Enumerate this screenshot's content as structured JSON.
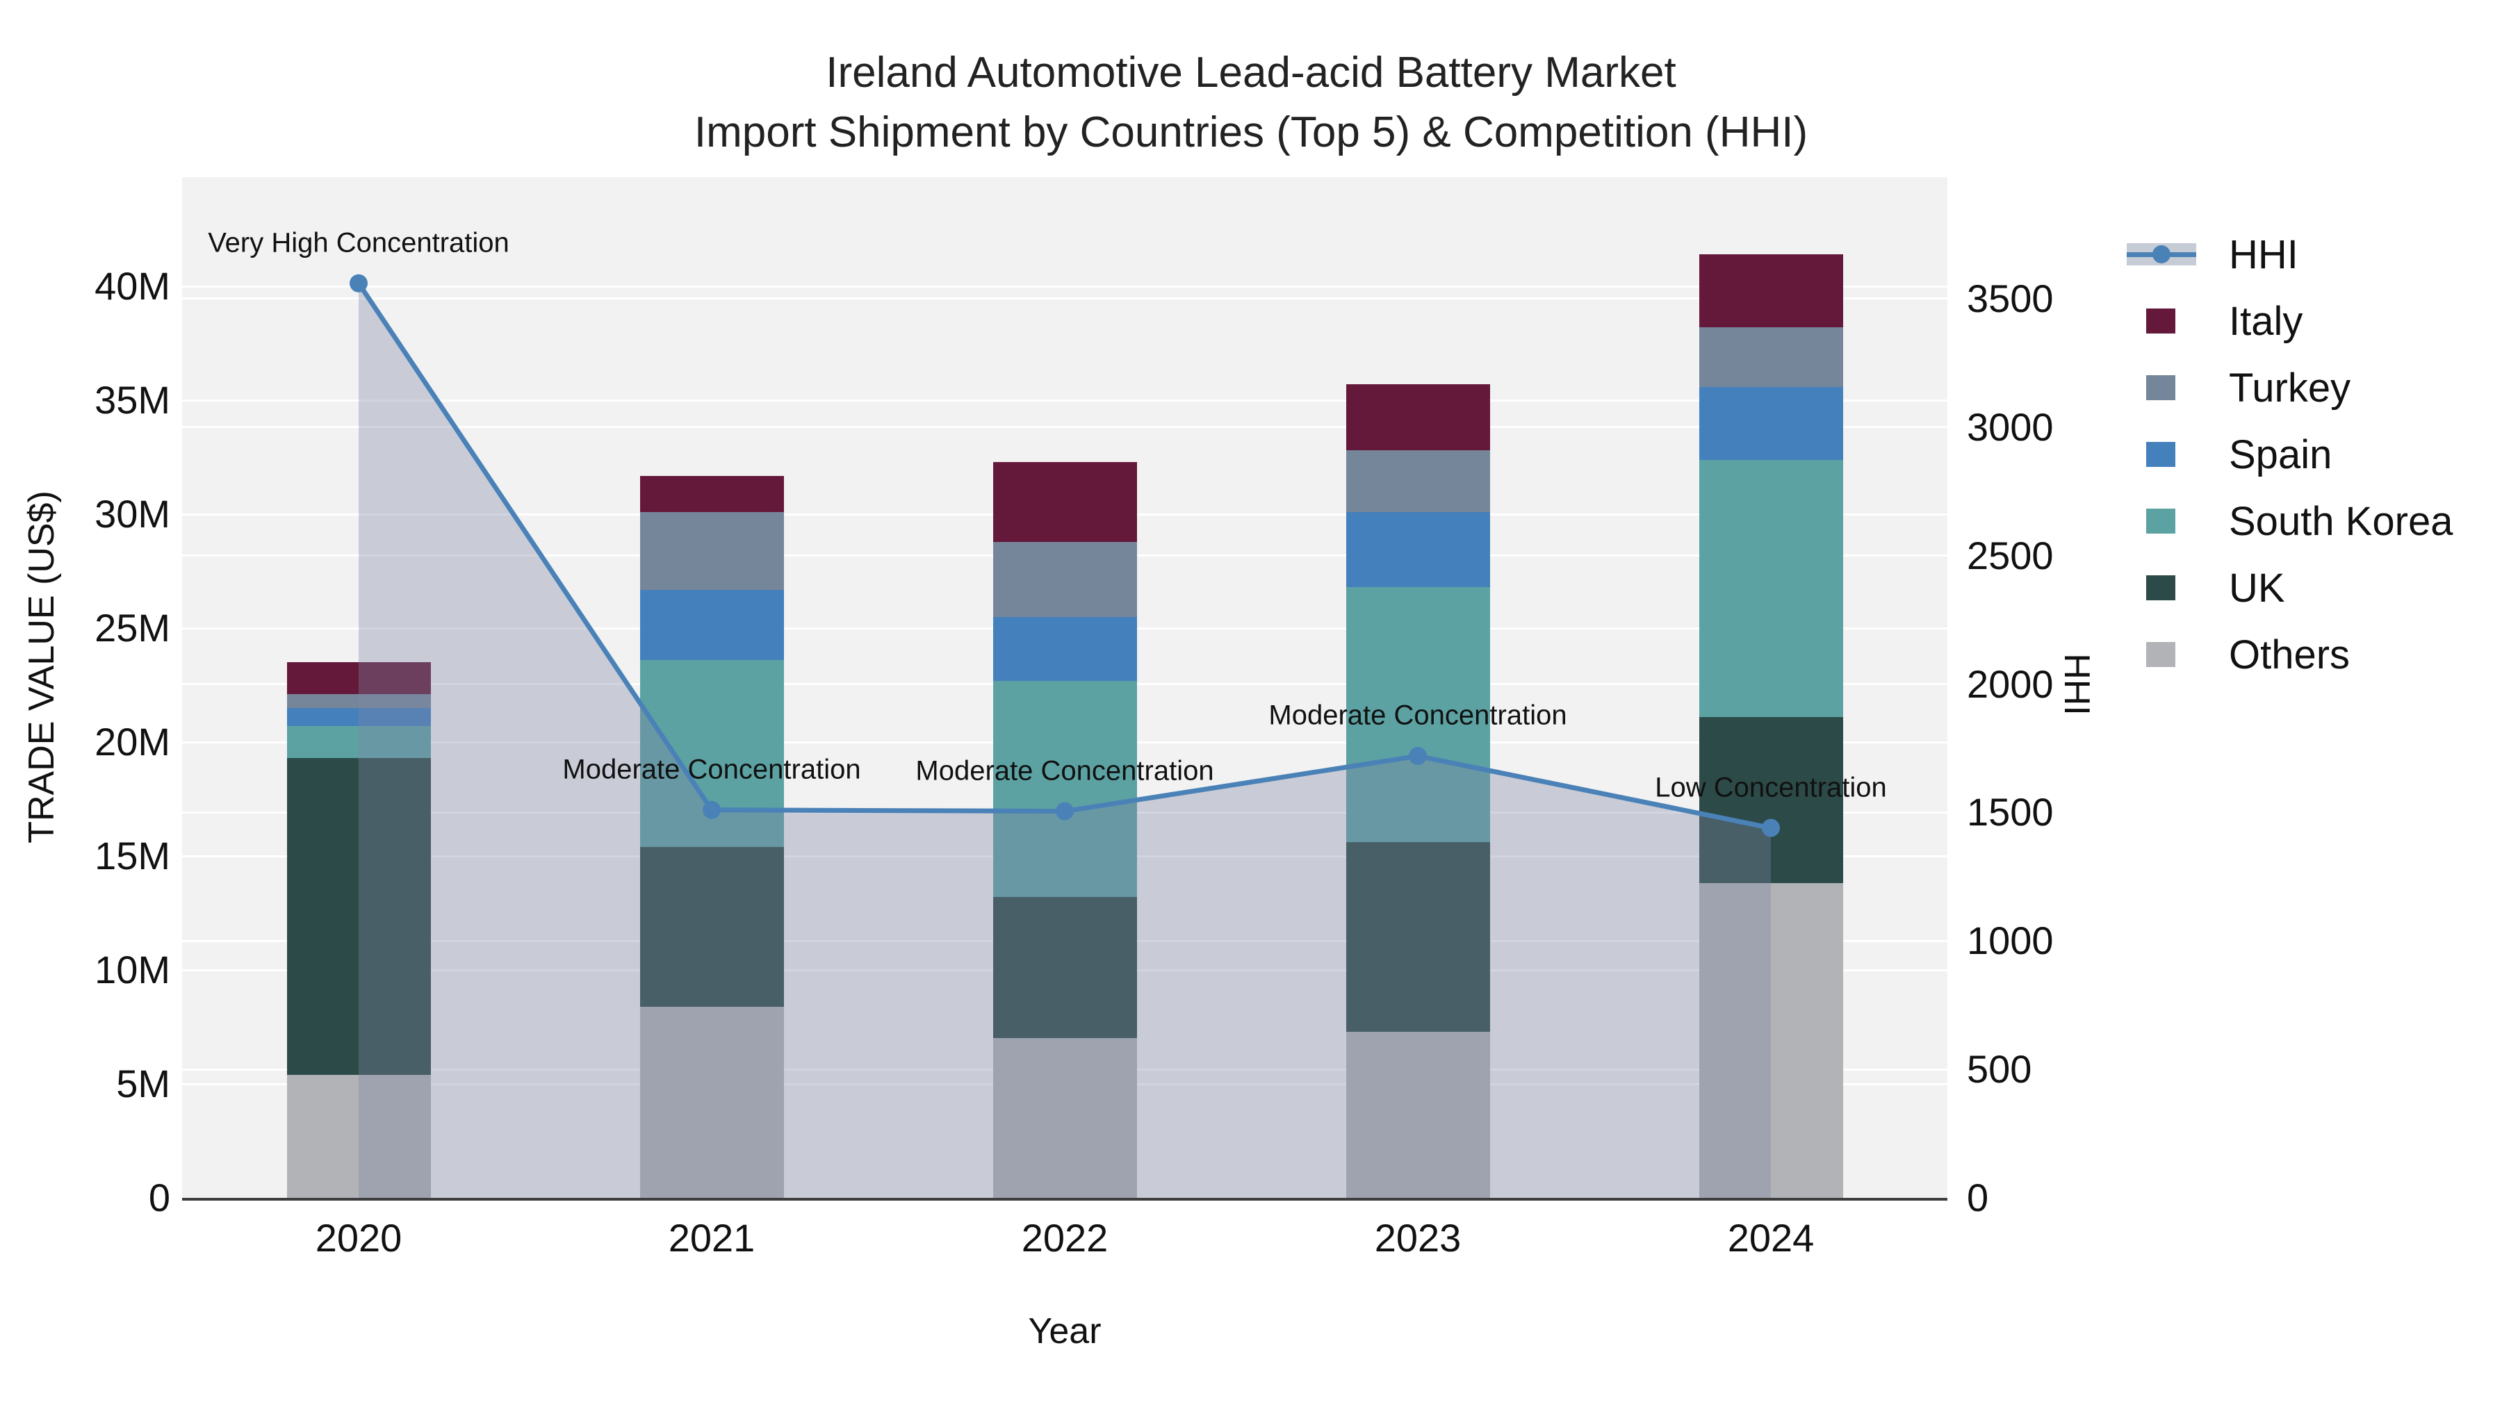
{
  "title": {
    "line1": "Ireland Automotive Lead-acid Battery Market",
    "line2": "Import Shipment by Countries (Top 5) & Competition (HHI)"
  },
  "chart_data": {
    "type": "bar",
    "subtype": "stacked-bar-with-line",
    "categories": [
      "2020",
      "2021",
      "2022",
      "2023",
      "2024"
    ],
    "bar_unit": "million US$",
    "series": [
      {
        "name": "Others",
        "color": "#b1b3b6",
        "values": [
          5.4,
          8.4,
          7.0,
          7.3,
          13.8
        ]
      },
      {
        "name": "UK",
        "color": "#2c4b48",
        "values": [
          13.9,
          7.0,
          6.2,
          8.3,
          7.3
        ]
      },
      {
        "name": "South Korea",
        "color": "#5da2a3",
        "values": [
          1.4,
          8.2,
          9.5,
          11.2,
          11.3
        ]
      },
      {
        "name": "Spain",
        "color": "#4480bc",
        "values": [
          0.8,
          3.1,
          2.8,
          3.3,
          3.2
        ]
      },
      {
        "name": "Turkey",
        "color": "#76869a",
        "values": [
          0.6,
          3.4,
          3.3,
          2.7,
          2.6
        ]
      },
      {
        "name": "Italy",
        "color": "#64193a",
        "values": [
          1.4,
          1.6,
          3.5,
          2.9,
          3.2
        ]
      }
    ],
    "bar_totals": [
      23.5,
      31.7,
      32.3,
      35.7,
      41.4
    ],
    "line_series": {
      "name": "HHI",
      "color": "#4a82b8",
      "fill_color": "rgba(125,136,167,0.35)",
      "values": [
        3560,
        1510,
        1505,
        1720,
        1440
      ]
    },
    "annotations": [
      "Very High Concentration",
      "Moderate Concentration",
      "Moderate Concentration",
      "Moderate Concentration",
      "Low Concentration"
    ],
    "left_axis": {
      "title": "TRADE VALUE (US$)",
      "tick_labels": [
        "0",
        "5M",
        "10M",
        "15M",
        "20M",
        "25M",
        "30M",
        "35M",
        "40M"
      ],
      "tick_values": [
        0,
        5,
        10,
        15,
        20,
        25,
        30,
        35,
        40
      ],
      "range": [
        0,
        44.8
      ],
      "grid_step": 5
    },
    "right_axis": {
      "title": "HHI",
      "tick_labels": [
        "0",
        "500",
        "1000",
        "1500",
        "2000",
        "2500",
        "3000",
        "3500"
      ],
      "tick_values": [
        0,
        500,
        1000,
        1500,
        2000,
        2500,
        3000,
        3500
      ],
      "range": [
        0,
        3973
      ],
      "grid_step": 500
    },
    "x_axis": {
      "title": "Year"
    },
    "grid": true,
    "legend_position": "right"
  },
  "legend": {
    "items": [
      {
        "label": "HHI",
        "type": "line",
        "color": "#4a82b8"
      },
      {
        "label": "Italy",
        "type": "swatch",
        "color": "#64193a"
      },
      {
        "label": "Turkey",
        "type": "swatch",
        "color": "#76869a"
      },
      {
        "label": "Spain",
        "type": "swatch",
        "color": "#4480bc"
      },
      {
        "label": "South Korea",
        "type": "swatch",
        "color": "#5da2a3"
      },
      {
        "label": "UK",
        "type": "swatch",
        "color": "#2c4b48"
      },
      {
        "label": "Others",
        "type": "swatch",
        "color": "#b1b3b6"
      }
    ]
  },
  "colors": {
    "plot_background": "#f2f2f2",
    "gridline": "#ffffff",
    "axis_line": "#3d3d3d",
    "text": "#111111"
  }
}
